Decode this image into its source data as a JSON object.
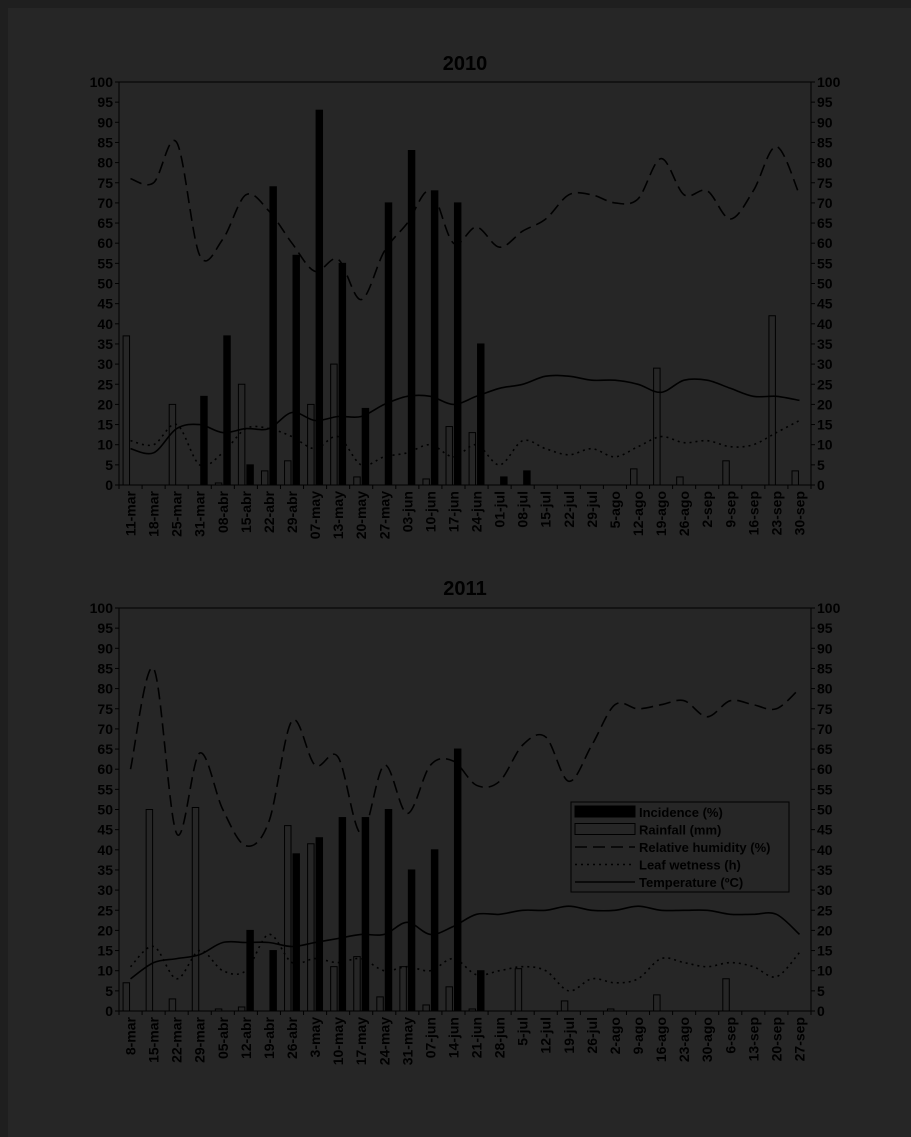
{
  "colors": {
    "background": "#262626",
    "ink": "#000000",
    "bar_fill_rainfall": "#262626"
  },
  "chart_data": [
    {
      "type": "bar",
      "title": "2010",
      "ylim": [
        0,
        100
      ],
      "y_ticks": [
        0,
        5,
        10,
        15,
        20,
        25,
        30,
        35,
        40,
        45,
        50,
        55,
        60,
        65,
        70,
        75,
        80,
        85,
        90,
        95,
        100
      ],
      "grid": false,
      "categories": [
        "11-mar",
        "18-mar",
        "25-mar",
        "31-mar",
        "08-abr",
        "15-abr",
        "22-abr",
        "29-abr",
        "07-may",
        "13-may",
        "20-may",
        "27-may",
        "03-jun",
        "10-jun",
        "17-jun",
        "24-jun",
        "01-jul",
        "08-jul",
        "15-jul",
        "22-jul",
        "29-jul",
        "5-ago",
        "12-ago",
        "19-ago",
        "26-ago",
        "2-sep",
        "9-sep",
        "16-sep",
        "23-sep",
        "30-sep"
      ],
      "series": [
        {
          "name": "Incidence (%)",
          "kind": "bar",
          "values": [
            0,
            0,
            0,
            22,
            37,
            5,
            74,
            57,
            93,
            55,
            19,
            70,
            83,
            73,
            70,
            35,
            2,
            3.5,
            0,
            0,
            0,
            0,
            0,
            0,
            0,
            0,
            0,
            0,
            0,
            0
          ]
        },
        {
          "name": "Rainfall (mm)",
          "kind": "bar",
          "values": [
            37,
            0,
            20,
            0,
            0.5,
            25,
            3.5,
            6,
            20,
            30,
            2,
            0,
            0,
            1.5,
            14.5,
            13,
            0,
            0,
            0,
            0,
            0,
            0,
            4,
            29,
            2,
            0,
            6,
            0,
            42,
            3.5
          ]
        },
        {
          "name": "Relative humidity (%)",
          "kind": "line",
          "dash": "dashed",
          "values": [
            76,
            75,
            85,
            57,
            61,
            72,
            68,
            60,
            53,
            56,
            46,
            58,
            65,
            73,
            60,
            64,
            59,
            63,
            66,
            72,
            72,
            70,
            71,
            81,
            72,
            73,
            66,
            73,
            84,
            72
          ]
        },
        {
          "name": "Leaf wetness (h)",
          "kind": "line",
          "dash": "dotted",
          "values": [
            11,
            10,
            15,
            5,
            8,
            14,
            14,
            12,
            9,
            12,
            5,
            7,
            8,
            10,
            7,
            10,
            5,
            11,
            9,
            7.5,
            9,
            7,
            9.5,
            12,
            10.5,
            11,
            9.5,
            10,
            13,
            16
          ]
        },
        {
          "name": "Temperature (ºC)",
          "kind": "line",
          "dash": "solid",
          "values": [
            9,
            8,
            14,
            15,
            13,
            14,
            14,
            18,
            16,
            17,
            17,
            20,
            22,
            22,
            20,
            22,
            24,
            25,
            27,
            27,
            26,
            26,
            25,
            23,
            26,
            26,
            24,
            22,
            22,
            21
          ]
        }
      ]
    },
    {
      "type": "bar",
      "title": "2011",
      "ylim": [
        0,
        100
      ],
      "y_ticks": [
        0,
        5,
        10,
        15,
        20,
        25,
        30,
        35,
        40,
        45,
        50,
        55,
        60,
        65,
        70,
        75,
        80,
        85,
        90,
        95,
        100
      ],
      "grid": false,
      "legend_position": "right-center",
      "categories": [
        "8-mar",
        "15-mar",
        "22-mar",
        "29-mar",
        "05-abr",
        "12-abr",
        "19-abr",
        "26-abr",
        "3-may",
        "10-may",
        "17-may",
        "24-may",
        "31-may",
        "07-jun",
        "14-jun",
        "21-jun",
        "28-jun",
        "5-jul",
        "12-jul",
        "19-jul",
        "26-jul",
        "2-ago",
        "9-ago",
        "16-ago",
        "23-ago",
        "30-ago",
        "6-sep",
        "13-sep",
        "20-sep",
        "27-sep"
      ],
      "series": [
        {
          "name": "Incidence (%)",
          "kind": "bar",
          "values": [
            0,
            0,
            0,
            0,
            0,
            20,
            15,
            39,
            43,
            48,
            48,
            50,
            35,
            40,
            65,
            10,
            0,
            0,
            0,
            0,
            0,
            0,
            0,
            0,
            0,
            0,
            0,
            0,
            0,
            0
          ]
        },
        {
          "name": "Rainfall (mm)",
          "kind": "bar",
          "values": [
            7,
            50,
            3,
            50.5,
            0.5,
            1,
            0,
            46,
            41.5,
            11,
            13.5,
            3.5,
            11,
            1.5,
            6,
            0.5,
            0,
            10.5,
            0,
            2.5,
            0,
            0.5,
            0,
            4,
            0,
            0,
            8,
            0,
            0,
            0
          ]
        },
        {
          "name": "Relative humidity (%)",
          "kind": "line",
          "dash": "dashed",
          "values": [
            60,
            85,
            44,
            64,
            50,
            41,
            47,
            72,
            61,
            63,
            44,
            61,
            49,
            61,
            62,
            56,
            57,
            66,
            68,
            57,
            66,
            76,
            75,
            76,
            77,
            73,
            77,
            76,
            75,
            80
          ]
        },
        {
          "name": "Leaf wetness (h)",
          "kind": "line",
          "dash": "dotted",
          "values": [
            11,
            16,
            8,
            15,
            10,
            10,
            19,
            12,
            13,
            12,
            13,
            10,
            11,
            10,
            13,
            9,
            10,
            11,
            10,
            5,
            8,
            7,
            8,
            13,
            12,
            11,
            12,
            11,
            8.5,
            14.5
          ]
        },
        {
          "name": "Temperature (ºC)",
          "kind": "line",
          "dash": "solid",
          "values": [
            8,
            12,
            13,
            14,
            17,
            17,
            17,
            16,
            17,
            18,
            19,
            19,
            22,
            19,
            21,
            24,
            24,
            25,
            25,
            26,
            25,
            25,
            26,
            25,
            25,
            25,
            24,
            24,
            24,
            19
          ]
        }
      ]
    }
  ]
}
